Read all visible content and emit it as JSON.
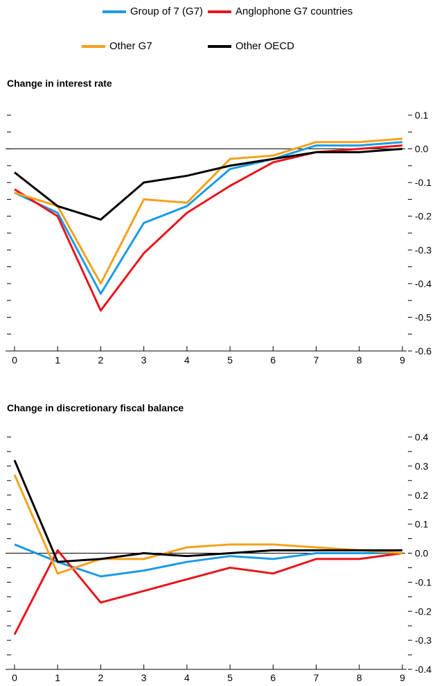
{
  "legend": [
    {
      "name": "Group of 7 (G7)",
      "color": "#1a9be6"
    },
    {
      "name": "Anglophone G7 countries",
      "color": "#e8141c"
    },
    {
      "name": "Other G7",
      "color": "#f5a01a"
    },
    {
      "name": "Other OECD",
      "color": "#000000"
    }
  ],
  "chart_data": [
    {
      "type": "line",
      "title": "Change in interest rate",
      "x": [
        0,
        1,
        2,
        3,
        4,
        5,
        6,
        7,
        8,
        9
      ],
      "ylim": [
        -0.6,
        0.1
      ],
      "yticks": [
        "0.1",
        "0.0",
        "-0.1",
        "-0.2",
        "-0.3",
        "-0.4",
        "-0.5",
        "-0.6"
      ],
      "ytick_values": [
        0.1,
        0.0,
        -0.1,
        -0.2,
        -0.3,
        -0.4,
        -0.5,
        -0.6
      ],
      "xticks": [
        "0",
        "1",
        "2",
        "3",
        "4",
        "5",
        "6",
        "7",
        "8",
        "9"
      ],
      "y_axis_side": "right",
      "series": [
        {
          "name": "Group of 7 (G7)",
          "color": "#1a9be6",
          "values": [
            -0.13,
            -0.19,
            -0.43,
            -0.22,
            -0.17,
            -0.06,
            -0.03,
            0.01,
            0.01,
            0.02
          ]
        },
        {
          "name": "Anglophone G7 countries",
          "color": "#e8141c",
          "values": [
            -0.12,
            -0.2,
            -0.48,
            -0.31,
            -0.19,
            -0.11,
            -0.04,
            -0.01,
            0.0,
            0.01
          ]
        },
        {
          "name": "Other G7",
          "color": "#f5a01a",
          "values": [
            -0.13,
            -0.17,
            -0.4,
            -0.15,
            -0.16,
            -0.03,
            -0.02,
            0.02,
            0.02,
            0.03
          ]
        },
        {
          "name": "Other OECD",
          "color": "#000000",
          "values": [
            -0.07,
            -0.17,
            -0.21,
            -0.1,
            -0.08,
            -0.05,
            -0.03,
            -0.01,
            -0.01,
            0.0
          ]
        }
      ]
    },
    {
      "type": "line",
      "title": "Change in discretionary fiscal balance",
      "x": [
        0,
        1,
        2,
        3,
        4,
        5,
        6,
        7,
        8,
        9
      ],
      "ylim": [
        -0.4,
        0.4
      ],
      "yticks": [
        "0.4",
        "0.3",
        "0.2",
        "0.1",
        "0.0",
        "-0.1",
        "-0.2",
        "-0.3",
        "-0.4"
      ],
      "ytick_values": [
        0.4,
        0.3,
        0.2,
        0.1,
        0.0,
        -0.1,
        -0.2,
        -0.3,
        -0.4
      ],
      "xticks": [
        "0",
        "1",
        "2",
        "3",
        "4",
        "5",
        "6",
        "7",
        "8",
        "9"
      ],
      "y_axis_side": "right",
      "series": [
        {
          "name": "Group of 7 (G7)",
          "color": "#1a9be6",
          "values": [
            0.03,
            -0.03,
            -0.08,
            -0.06,
            -0.03,
            -0.01,
            -0.02,
            0.0,
            0.0,
            0.0
          ]
        },
        {
          "name": "Anglophone G7 countries",
          "color": "#e8141c",
          "values": [
            -0.28,
            0.01,
            -0.17,
            -0.13,
            -0.09,
            -0.05,
            -0.07,
            -0.02,
            -0.02,
            0.0
          ]
        },
        {
          "name": "Other G7",
          "color": "#f5a01a",
          "values": [
            0.27,
            -0.07,
            -0.02,
            -0.02,
            0.02,
            0.03,
            0.03,
            0.02,
            0.01,
            0.0
          ]
        },
        {
          "name": "Other OECD",
          "color": "#000000",
          "values": [
            0.32,
            -0.03,
            -0.02,
            0.0,
            -0.01,
            0.0,
            0.01,
            0.01,
            0.01,
            0.01
          ]
        }
      ]
    }
  ]
}
